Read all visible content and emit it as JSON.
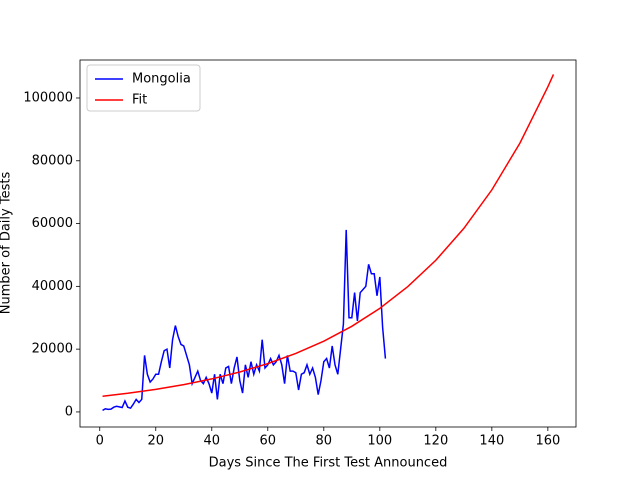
{
  "chart_data": {
    "type": "line",
    "xlabel": "Days Since The First Test Announced",
    "ylabel": "Number of Daily Tests",
    "xlim": [
      -7.05,
      170.05
    ],
    "ylim": [
      -4800,
      112100
    ],
    "xticks": [
      0,
      20,
      40,
      60,
      80,
      100,
      120,
      140,
      160
    ],
    "yticks": [
      0,
      20000,
      40000,
      60000,
      80000,
      100000
    ],
    "legend": "upper left",
    "series": [
      {
        "name": "Mongolia",
        "color": "#0000ff",
        "x": [
          1,
          2,
          3,
          4,
          5,
          6,
          7,
          8,
          9,
          10,
          11,
          12,
          13,
          14,
          15,
          16,
          17,
          18,
          19,
          20,
          21,
          22,
          23,
          24,
          25,
          26,
          27,
          28,
          29,
          30,
          31,
          32,
          33,
          34,
          35,
          36,
          37,
          38,
          39,
          40,
          41,
          42,
          43,
          44,
          45,
          46,
          47,
          48,
          49,
          50,
          51,
          52,
          53,
          54,
          55,
          56,
          57,
          58,
          59,
          60,
          61,
          62,
          63,
          64,
          65,
          66,
          67,
          68,
          69,
          70,
          71,
          72,
          73,
          74,
          75,
          76,
          77,
          78,
          79,
          80,
          81,
          82,
          83,
          84,
          85,
          86,
          87,
          88,
          89,
          90,
          91,
          92,
          93,
          94,
          95,
          96,
          97,
          98,
          99,
          100,
          101,
          102
        ],
        "values": [
          500,
          1000,
          800,
          900,
          1500,
          1800,
          1600,
          1400,
          3500,
          1500,
          1200,
          2500,
          4000,
          3000,
          4000,
          18000,
          12000,
          9500,
          10500,
          12000,
          12000,
          16000,
          19500,
          20000,
          14000,
          23000,
          27500,
          24000,
          21500,
          21000,
          18000,
          15000,
          9000,
          11000,
          13000,
          10000,
          9000,
          11000,
          9000,
          6000,
          12000,
          4000,
          12000,
          9000,
          14000,
          14500,
          9000,
          14000,
          17500,
          10000,
          6000,
          15000,
          11000,
          16000,
          12000,
          15000,
          13000,
          23000,
          14000,
          15000,
          17000,
          15000,
          16000,
          18000,
          15000,
          9000,
          18000,
          13000,
          13000,
          12500,
          7000,
          12000,
          12500,
          15000,
          12000,
          14000,
          11000,
          5500,
          10000,
          16000,
          17000,
          14000,
          21000,
          15000,
          12000,
          20000,
          28000,
          58000,
          30000,
          30000,
          38000,
          29000,
          38000,
          39000,
          40000,
          47000,
          44000,
          44000,
          37000,
          43000,
          27000,
          17000
        ]
      },
      {
        "name": "Fit",
        "color": "#ff0000",
        "x": [
          1,
          10,
          20,
          30,
          40,
          50,
          60,
          70,
          80,
          90,
          100,
          110,
          120,
          130,
          140,
          150,
          160,
          162
        ],
        "values": [
          5000,
          5935,
          7182,
          8690,
          10515,
          12722,
          15393,
          18626,
          22537,
          27270,
          32997,
          39925,
          48310,
          58450,
          70730,
          85580,
          103550,
          107500
        ]
      }
    ]
  }
}
